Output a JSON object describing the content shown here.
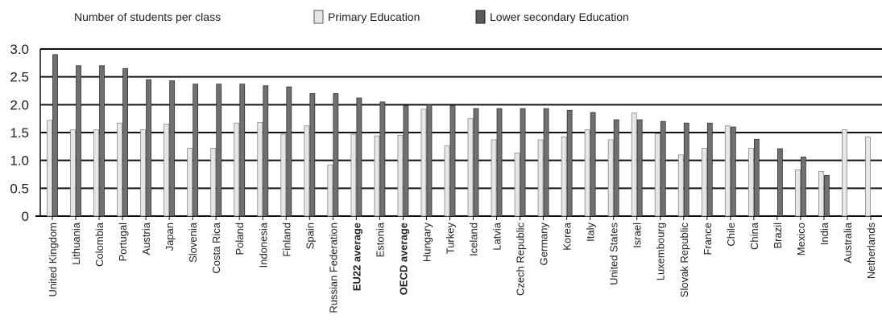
{
  "chart_data": {
    "type": "bar",
    "title": "Number of students per class",
    "ylim": [
      0,
      3.0
    ],
    "yticks": [
      "3.0",
      "2.5",
      "2.0",
      "1.5",
      "1.0",
      "0.5",
      "0"
    ],
    "grid": true,
    "legend": "top",
    "categories": [
      "United Kingdom",
      "Lithuania",
      "Colombia",
      "Portugal",
      "Austria",
      "Japan",
      "Slovenia",
      "Costa Rica",
      "Poland",
      "Indonesia",
      "Finland",
      "Spain",
      "Russian Federation",
      "EU22 average",
      "Estonia",
      "OECD average",
      "Hungary",
      "Turkey",
      "Iceland",
      "Latvia",
      "Czech Republic",
      "Germany",
      "Korea",
      "Italy",
      "United States",
      "Israel",
      "Luxembourg",
      "Slovak Republic",
      "France",
      "Chile",
      "China",
      "Brazil",
      "Mexico",
      "India",
      "Australia",
      "Netherlands"
    ],
    "bold_categories": [
      "EU22 average",
      "OECD average"
    ],
    "series": [
      {
        "name": "Primary Education",
        "values": [
          1.72,
          1.55,
          1.55,
          1.67,
          1.55,
          1.65,
          1.22,
          1.22,
          1.67,
          1.68,
          1.47,
          1.62,
          0.92,
          1.47,
          1.44,
          1.45,
          1.92,
          1.26,
          1.75,
          1.37,
          1.13,
          1.37,
          1.42,
          1.55,
          1.37,
          1.85,
          1.48,
          1.1,
          1.22,
          1.62,
          1.22,
          null,
          0.83,
          0.8,
          1.55,
          1.42
        ]
      },
      {
        "name": "Lower secondary Education",
        "values": [
          2.9,
          2.7,
          2.7,
          2.65,
          2.45,
          2.43,
          2.37,
          2.37,
          2.37,
          2.34,
          2.32,
          2.2,
          2.2,
          2.12,
          2.05,
          1.98,
          2.0,
          1.98,
          1.93,
          1.93,
          1.93,
          1.93,
          1.9,
          1.86,
          1.73,
          1.73,
          1.7,
          1.67,
          1.67,
          1.6,
          1.38,
          1.21,
          1.06,
          0.73,
          null,
          null
        ]
      }
    ],
    "colors": {
      "primary": "#e6e6e6",
      "secondary": "#707070",
      "stroke": "#333333"
    }
  }
}
